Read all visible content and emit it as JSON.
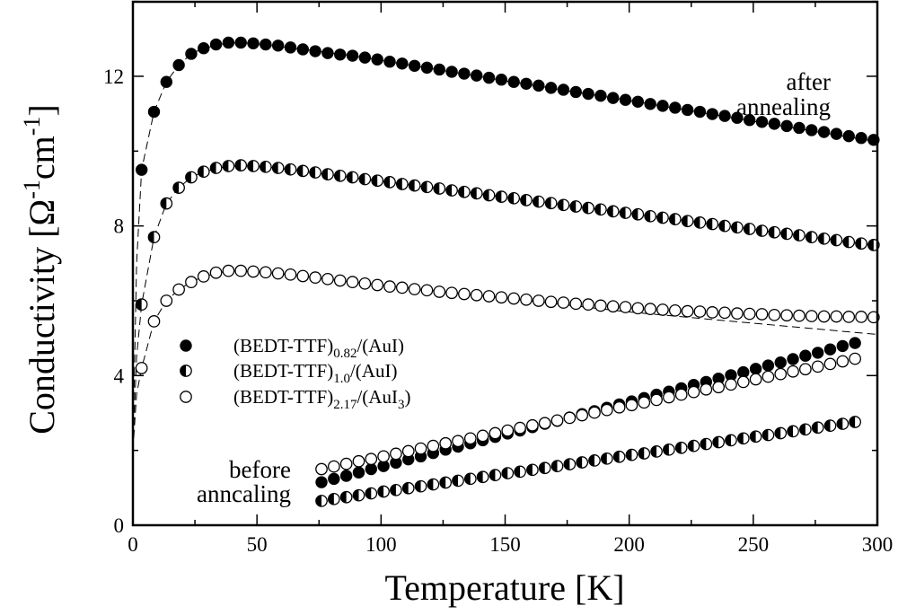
{
  "chart_data": {
    "type": "scatter",
    "xlabel": "Temperature [K]",
    "ylabel_main": "Conductivity [",
    "ylabel_unit": "Ω",
    "ylabel_exp1": "-1",
    "ylabel_cm": "cm",
    "ylabel_exp2": "-1",
    "ylabel_close": "]",
    "xlim": [
      0,
      300
    ],
    "ylim": [
      0,
      14
    ],
    "xticks": [
      0,
      50,
      100,
      150,
      200,
      250,
      300
    ],
    "xtick_labels": [
      "0",
      "50",
      "100",
      "150",
      "200",
      "250",
      "300"
    ],
    "yticks": [
      0,
      4,
      8,
      12
    ],
    "ytick_labels": [
      "0",
      "4",
      "8",
      "12"
    ],
    "grid": false,
    "legend_position": "center-left",
    "legend": [
      {
        "marker": "filled",
        "base": "(BEDT-TTF)",
        "sub": "0.82",
        "tail": "/(AuI)",
        "tail_sub": "",
        "tail_end": ""
      },
      {
        "marker": "half",
        "base": "(BEDT-TTF)",
        "sub": "1.0",
        "tail": "/(AuI)",
        "tail_sub": "",
        "tail_end": ""
      },
      {
        "marker": "open",
        "base": "(BEDT-TTF)",
        "sub": "2.17",
        "tail": "/(AuI",
        "tail_sub": "3",
        "tail_end": ")"
      }
    ],
    "annotations": {
      "after_line1": "after",
      "after_line2": "annealing",
      "before_line1": "before",
      "before_line2": "anncaling"
    },
    "after_x": [
      3.5,
      8.5,
      13.5,
      18.5,
      23.5,
      28.5,
      33.5,
      38.5,
      43.5,
      48.5,
      53.5,
      58.5,
      63.5,
      68.5,
      73.5,
      78.5,
      83.5,
      88.5,
      93.5,
      98.5,
      103.5,
      108.5,
      113.5,
      118.5,
      123.5,
      128.5,
      133.5,
      138.5,
      143.5,
      148.5,
      153.5,
      158.5,
      163.5,
      168.5,
      173.5,
      178.5,
      183.5,
      188.5,
      193.5,
      198.5,
      203.5,
      208.5,
      213.5,
      218.5,
      223.5,
      228.5,
      233.5,
      238.5,
      243.5,
      248.5,
      253.5,
      258.5,
      263.5,
      268.5,
      273.5,
      278.5,
      283.5,
      288.5,
      293.5,
      298.5
    ],
    "before_x": [
      76,
      81,
      86,
      91,
      96,
      101,
      106,
      111,
      116,
      121,
      126,
      131,
      136,
      141,
      146,
      151,
      156,
      161,
      166,
      171,
      176,
      181,
      186,
      191,
      196,
      201,
      206,
      211,
      216,
      221,
      226,
      231,
      236,
      241,
      246,
      251,
      256,
      261,
      266,
      271,
      276,
      281,
      286,
      291
    ],
    "series": [
      {
        "name": "(BEDT-TTF)0.82/(AuI) after annealing",
        "marker": "filled",
        "group": "after",
        "y": [
          9.5,
          11.05,
          11.85,
          12.3,
          12.6,
          12.75,
          12.85,
          12.9,
          12.9,
          12.88,
          12.85,
          12.82,
          12.77,
          12.72,
          12.67,
          12.62,
          12.58,
          12.55,
          12.5,
          12.45,
          12.39,
          12.34,
          12.28,
          12.23,
          12.18,
          12.12,
          12.07,
          12.02,
          11.96,
          11.91,
          11.85,
          11.8,
          11.75,
          11.69,
          11.64,
          11.58,
          11.53,
          11.48,
          11.42,
          11.37,
          11.32,
          11.26,
          11.21,
          11.16,
          11.1,
          11.05,
          10.99,
          10.94,
          10.89,
          10.83,
          10.78,
          10.73,
          10.67,
          10.62,
          10.56,
          10.51,
          10.46,
          10.4,
          10.35,
          10.3
        ]
      },
      {
        "name": "(BEDT-TTF)1.0/(AuI) after annealing",
        "marker": "half",
        "group": "after",
        "y": [
          5.9,
          7.7,
          8.6,
          9.02,
          9.3,
          9.45,
          9.55,
          9.6,
          9.62,
          9.6,
          9.58,
          9.55,
          9.51,
          9.47,
          9.43,
          9.38,
          9.34,
          9.3,
          9.25,
          9.21,
          9.17,
          9.12,
          9.08,
          9.04,
          9.0,
          8.95,
          8.91,
          8.87,
          8.82,
          8.78,
          8.74,
          8.69,
          8.65,
          8.61,
          8.56,
          8.52,
          8.48,
          8.44,
          8.39,
          8.35,
          8.31,
          8.26,
          8.22,
          8.18,
          8.13,
          8.09,
          8.05,
          8.0,
          7.96,
          7.92,
          7.87,
          7.83,
          7.79,
          7.75,
          7.7,
          7.66,
          7.62,
          7.57,
          7.53,
          7.49
        ]
      },
      {
        "name": "(BEDT-TTF)2.17/(AuI3) after annealing",
        "marker": "open",
        "group": "after",
        "y": [
          4.2,
          5.45,
          6.0,
          6.3,
          6.5,
          6.65,
          6.75,
          6.8,
          6.8,
          6.78,
          6.76,
          6.73,
          6.7,
          6.66,
          6.62,
          6.58,
          6.54,
          6.5,
          6.46,
          6.42,
          6.38,
          6.35,
          6.31,
          6.28,
          6.24,
          6.21,
          6.18,
          6.15,
          6.12,
          6.09,
          6.06,
          6.03,
          6.0,
          5.97,
          5.95,
          5.92,
          5.9,
          5.87,
          5.85,
          5.83,
          5.8,
          5.78,
          5.76,
          5.74,
          5.72,
          5.71,
          5.69,
          5.68,
          5.66,
          5.65,
          5.64,
          5.62,
          5.61,
          5.6,
          5.59,
          5.58,
          5.58,
          5.57,
          5.57,
          5.56
        ]
      },
      {
        "name": "(BEDT-TTF)0.82/(AuI) before annealing",
        "marker": "filled",
        "group": "before",
        "y": [
          1.15,
          1.24,
          1.32,
          1.41,
          1.5,
          1.58,
          1.67,
          1.76,
          1.84,
          1.93,
          2.02,
          2.1,
          2.19,
          2.27,
          2.36,
          2.45,
          2.53,
          2.62,
          2.71,
          2.79,
          2.88,
          2.97,
          3.05,
          3.14,
          3.23,
          3.31,
          3.4,
          3.49,
          3.57,
          3.66,
          3.75,
          3.83,
          3.92,
          4.01,
          4.09,
          4.18,
          4.27,
          4.35,
          4.44,
          4.53,
          4.61,
          4.7,
          4.79,
          4.87
        ]
      },
      {
        "name": "(BEDT-TTF)1.0/(AuI) before annealing",
        "marker": "half",
        "group": "before",
        "y": [
          0.65,
          0.7,
          0.75,
          0.8,
          0.85,
          0.9,
          0.94,
          0.99,
          1.04,
          1.09,
          1.14,
          1.19,
          1.24,
          1.29,
          1.34,
          1.39,
          1.43,
          1.48,
          1.53,
          1.58,
          1.63,
          1.68,
          1.73,
          1.78,
          1.83,
          1.88,
          1.92,
          1.97,
          2.02,
          2.07,
          2.12,
          2.17,
          2.22,
          2.27,
          2.32,
          2.37,
          2.41,
          2.46,
          2.51,
          2.56,
          2.61,
          2.66,
          2.71,
          2.76
        ]
      },
      {
        "name": "(BEDT-TTF)2.17/(AuI3) before annealing",
        "marker": "open",
        "group": "before",
        "y": [
          1.5,
          1.57,
          1.64,
          1.71,
          1.77,
          1.84,
          1.91,
          1.98,
          2.05,
          2.12,
          2.19,
          2.25,
          2.32,
          2.39,
          2.46,
          2.53,
          2.6,
          2.67,
          2.73,
          2.8,
          2.87,
          2.94,
          3.01,
          3.08,
          3.15,
          3.21,
          3.28,
          3.35,
          3.42,
          3.49,
          3.56,
          3.63,
          3.69,
          3.76,
          3.83,
          3.9,
          3.97,
          4.04,
          4.11,
          4.17,
          4.24,
          4.31,
          4.38,
          4.45
        ]
      }
    ],
    "fits": [
      {
        "name": "fit (BEDT-TTF)0.82/(AuI)",
        "x": [
          0,
          1.5,
          3.5,
          8.5,
          13.5,
          18.5,
          23.5,
          28.5,
          38.5,
          48.5,
          68.5,
          88.5,
          150,
          200,
          250,
          300
        ],
        "y": [
          2.0,
          7.0,
          9.5,
          11.05,
          11.85,
          12.3,
          12.6,
          12.75,
          12.9,
          12.88,
          12.72,
          12.55,
          11.88,
          11.35,
          10.8,
          10.25
        ]
      },
      {
        "name": "fit (BEDT-TTF)1.0/(AuI)",
        "x": [
          0,
          1.5,
          3.5,
          8.5,
          13.5,
          18.5,
          23.5,
          28.5,
          38.5,
          48.5,
          58.5,
          150,
          200,
          250,
          300
        ],
        "y": [
          2.0,
          4.5,
          5.9,
          7.7,
          8.6,
          9.02,
          9.3,
          9.45,
          9.6,
          9.6,
          9.55,
          8.77,
          8.34,
          7.91,
          7.47
        ]
      },
      {
        "name": "fit (BEDT-TTF)2.17/(AuI3)",
        "x": [
          0,
          1.5,
          3.5,
          8.5,
          13.5,
          18.5,
          23.5,
          28.5,
          38.5,
          48.5,
          58.5,
          88.5,
          150,
          200,
          250,
          300
        ],
        "y": [
          2.0,
          3.5,
          4.2,
          5.45,
          6.0,
          6.3,
          6.5,
          6.65,
          6.8,
          6.78,
          6.73,
          6.5,
          6.07,
          5.7,
          5.4,
          5.1
        ]
      }
    ]
  }
}
